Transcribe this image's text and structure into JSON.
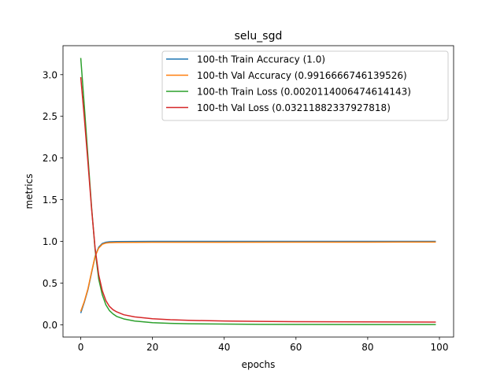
{
  "chart_data": {
    "type": "line",
    "title": "selu_sgd",
    "xlabel": "epochs",
    "ylabel": "metrics",
    "xlim": [
      -4.95,
      103.95
    ],
    "ylim": [
      -0.1475,
      3.3475
    ],
    "xticks": [
      0,
      20,
      40,
      60,
      80,
      100
    ],
    "xtick_labels": [
      "0",
      "20",
      "40",
      "60",
      "80",
      "100"
    ],
    "yticks": [
      0.0,
      0.5,
      1.0,
      1.5,
      2.0,
      2.5,
      3.0
    ],
    "ytick_labels": [
      "0.0",
      "0.5",
      "1.0",
      "1.5",
      "2.0",
      "2.5",
      "3.0"
    ],
    "grid": false,
    "legend_position": "top-right",
    "series": [
      {
        "name": "100-th Train Accuracy (1.0)",
        "color": "#1f77b4",
        "x": [
          0,
          1,
          2,
          3,
          4,
          5,
          6,
          7,
          8,
          10,
          15,
          20,
          30,
          40,
          60,
          80,
          99
        ],
        "y": [
          0.14,
          0.27,
          0.42,
          0.62,
          0.82,
          0.93,
          0.975,
          0.99,
          0.996,
          0.998,
          0.999,
          1.0,
          1.0,
          1.0,
          1.0,
          1.0,
          1.0
        ]
      },
      {
        "name": "100-th Val Accuracy (0.9916666746139526)",
        "color": "#ff7f0e",
        "x": [
          0,
          1,
          2,
          3,
          4,
          5,
          6,
          7,
          8,
          10,
          15,
          20,
          30,
          40,
          60,
          80,
          99
        ],
        "y": [
          0.16,
          0.28,
          0.43,
          0.63,
          0.82,
          0.92,
          0.965,
          0.98,
          0.985,
          0.987,
          0.988,
          0.989,
          0.99,
          0.99,
          0.991,
          0.991,
          0.992
        ]
      },
      {
        "name": "100-th Train Loss (0.0020114006474614143)",
        "color": "#2ca02c",
        "x": [
          0,
          1,
          2,
          3,
          4,
          5,
          6,
          7,
          8,
          9,
          10,
          12,
          15,
          20,
          25,
          30,
          40,
          50,
          60,
          80,
          99
        ],
        "y": [
          3.2,
          2.62,
          2.02,
          1.42,
          0.9,
          0.55,
          0.36,
          0.24,
          0.17,
          0.13,
          0.1,
          0.07,
          0.045,
          0.025,
          0.017,
          0.012,
          0.008,
          0.005,
          0.004,
          0.003,
          0.002
        ]
      },
      {
        "name": "100-th Val Loss (0.03211882337927818)",
        "color": "#d62728",
        "x": [
          0,
          1,
          2,
          3,
          4,
          5,
          6,
          7,
          8,
          9,
          10,
          12,
          15,
          20,
          25,
          30,
          40,
          50,
          60,
          80,
          99
        ],
        "y": [
          2.97,
          2.48,
          1.95,
          1.4,
          0.92,
          0.6,
          0.41,
          0.29,
          0.22,
          0.18,
          0.155,
          0.12,
          0.095,
          0.072,
          0.06,
          0.053,
          0.045,
          0.04,
          0.037,
          0.034,
          0.032
        ]
      }
    ]
  }
}
